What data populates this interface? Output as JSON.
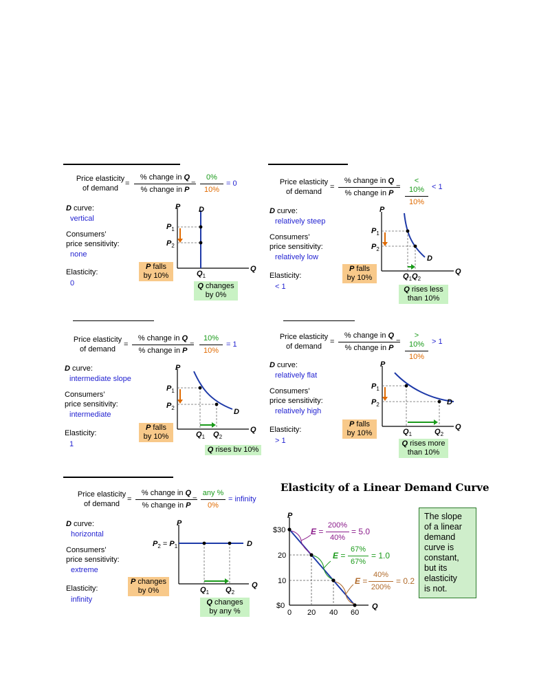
{
  "panels": [
    {
      "lhs": [
        "Price elasticity",
        "of demand"
      ],
      "num": "% change in ",
      "den": "% change in ",
      "qvar": "Q",
      "pvar": "P",
      "val_num": "0%",
      "val_den": "10%",
      "result": "= 0",
      "dcurve_label": "D",
      "dcurve_rest": " curve:",
      "dcurve_desc": "vertical",
      "sens_label": [
        "Consumers’",
        "price sensitivity:"
      ],
      "sens_desc": "none",
      "el_label": "Elasticity:",
      "el_val": "0",
      "falls_box": [
        "P",
        " falls",
        "by 10%"
      ],
      "change_box": [
        "Q",
        " changes",
        "by  0%"
      ],
      "axis_p": "P",
      "axis_q": "Q",
      "curve_label": "D",
      "p1": "P",
      "p1_sub": "1",
      "p2": "P",
      "p2_sub": "2",
      "q1": "Q",
      "q1_sub": "1",
      "q2": "",
      "q2_sub": ""
    },
    {
      "lhs": [
        "Price elasticity",
        "of demand"
      ],
      "num": "% change in ",
      "den": "% change in ",
      "qvar": "Q",
      "pvar": "P",
      "val_num": "< 10%",
      "val_den": "10%",
      "result": "< 1",
      "dcurve_label": "D",
      "dcurve_rest": " curve:",
      "dcurve_desc": "relatively steep",
      "sens_label": [
        "Consumers’",
        "price sensitivity:"
      ],
      "sens_desc": "relatively low",
      "el_label": "Elasticity:",
      "el_val": "< 1",
      "falls_box": [
        "P",
        " falls",
        "by 10%"
      ],
      "change_box": [
        "Q",
        " rises less",
        "than 10%"
      ],
      "axis_p": "P",
      "axis_q": "Q",
      "curve_label": "D",
      "p1": "P",
      "p1_sub": "1",
      "p2": "P",
      "p2_sub": "2",
      "q1": "Q",
      "q1_sub": "1",
      "q2": "Q",
      "q2_sub": "2"
    },
    {
      "lhs": [
        "Price elasticity",
        "of demand"
      ],
      "num": "% change in ",
      "den": "% change in ",
      "qvar": "Q",
      "pvar": "P",
      "val_num": "10%",
      "val_den": "10%",
      "result": "= 1",
      "dcurve_label": "D",
      "dcurve_rest": " curve:",
      "dcurve_desc": "intermediate slope",
      "sens_label": [
        "Consumers’",
        "price sensitivity:"
      ],
      "sens_desc": "intermediate",
      "el_label": "Elasticity:",
      "el_val": "1",
      "falls_box": [
        "P",
        " falls",
        "by 10%"
      ],
      "change_box": [
        "Q",
        " rises bv 10%",
        ""
      ],
      "axis_p": "P",
      "axis_q": "Q",
      "curve_label": "D",
      "p1": "P",
      "p1_sub": "1",
      "p2": "P",
      "p2_sub": "2",
      "q1": "Q",
      "q1_sub": "1",
      "q2": "Q",
      "q2_sub": "2"
    },
    {
      "lhs": [
        "Price elasticity",
        "of demand"
      ],
      "num": "% change in ",
      "den": "% change in ",
      "qvar": "Q",
      "pvar": "P",
      "val_num": "> 10%",
      "val_den": "10%",
      "result": "> 1",
      "dcurve_label": "D",
      "dcurve_rest": " curve:",
      "dcurve_desc": "relatively flat",
      "sens_label": [
        "Consumers’",
        "price sensitivity:"
      ],
      "sens_desc": "relatively high",
      "el_label": "Elasticity:",
      "el_val": "> 1",
      "falls_box": [
        "P",
        " falls",
        "by 10%"
      ],
      "change_box": [
        "Q",
        " rises more",
        "than 10%"
      ],
      "axis_p": "P",
      "axis_q": "Q",
      "curve_label": "D",
      "p1": "P",
      "p1_sub": "1",
      "p2": "P",
      "p2_sub": "2",
      "q1": "Q",
      "q1_sub": "1",
      "q2": "Q",
      "q2_sub": "2"
    },
    {
      "lhs": [
        "Price elasticity",
        "of demand"
      ],
      "num": "% change in ",
      "den": "% change in ",
      "qvar": "Q",
      "pvar": "P",
      "val_num": "any %",
      "val_den": "0%",
      "result": "= infinity",
      "dcurve_label": "D",
      "dcurve_rest": " curve:",
      "dcurve_desc": "horizontal",
      "sens_label": [
        "Consumers’",
        "price sensitivity:"
      ],
      "sens_desc": "extreme",
      "el_label": "Elasticity:",
      "el_val": "infinity",
      "falls_box": [
        "P",
        " changes",
        "by 0%"
      ],
      "change_box": [
        "Q",
        " changes",
        "by any %"
      ],
      "axis_p": "P",
      "axis_q": "Q",
      "curve_label": "D",
      "p_eq": [
        "P",
        "2",
        " = ",
        "P",
        "1"
      ],
      "q1": "Q",
      "q1_sub": "1",
      "q2": "Q",
      "q2_sub": "2"
    }
  ],
  "linear": {
    "title": "Elasticity of a Linear Demand Curve",
    "axis_p": "P",
    "axis_q": "Q",
    "y_ticks": [
      "$30",
      "20",
      "10",
      "$0"
    ],
    "x_ticks": [
      "0",
      "20",
      "40",
      "60"
    ],
    "e1": {
      "e": "E",
      "eq": " = ",
      "num": "200%",
      "den": "40%",
      "result": "= 5.0"
    },
    "e2": {
      "e": "E",
      "eq": " = ",
      "num": "67%",
      "den": "67%",
      "result": "= 1.0"
    },
    "e3": {
      "e": "E",
      "eq": " = ",
      "num": "40%",
      "den": "200%",
      "result": "= 0.2"
    },
    "note": [
      "The slope",
      "of a linear",
      "demand",
      "curve is",
      "constant,",
      "but its",
      "elasticity",
      "is not."
    ]
  },
  "colors": {
    "blue": "#1f1fd0",
    "green": "#1a9a1a",
    "orange": "#e06a00",
    "curve": "#1e3aa8",
    "purple": "#8a1a8a",
    "brown": "#b06a2a"
  }
}
